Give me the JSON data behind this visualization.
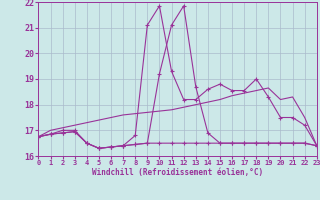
{
  "xlabel": "Windchill (Refroidissement éolien,°C)",
  "bg_color": "#cce8e8",
  "grid_color": "#aabbcc",
  "line_color": "#993399",
  "xlim": [
    0,
    23
  ],
  "ylim": [
    16,
    22
  ],
  "xticks": [
    0,
    1,
    2,
    3,
    4,
    5,
    6,
    7,
    8,
    9,
    10,
    11,
    12,
    13,
    14,
    15,
    16,
    17,
    18,
    19,
    20,
    21,
    22,
    23
  ],
  "yticks": [
    16,
    17,
    18,
    19,
    20,
    21,
    22
  ],
  "line1_x": [
    0,
    1,
    2,
    3,
    4,
    5,
    6,
    7,
    8,
    9,
    10,
    11,
    12,
    13,
    14,
    15,
    16,
    17,
    18,
    19,
    20,
    21,
    22,
    23
  ],
  "line1_y": [
    16.75,
    16.85,
    16.9,
    16.95,
    16.5,
    16.3,
    16.35,
    16.4,
    16.45,
    16.5,
    16.5,
    16.5,
    16.5,
    16.5,
    16.5,
    16.5,
    16.5,
    16.5,
    16.5,
    16.5,
    16.5,
    16.5,
    16.5,
    16.4
  ],
  "line2_x": [
    0,
    1,
    2,
    3,
    4,
    5,
    6,
    7,
    8,
    9,
    10,
    11,
    12,
    13,
    14,
    15,
    16,
    17,
    18,
    19,
    20,
    21,
    22,
    23
  ],
  "line2_y": [
    16.75,
    16.85,
    16.9,
    16.95,
    16.5,
    16.3,
    16.35,
    16.4,
    16.45,
    16.5,
    19.2,
    21.1,
    21.85,
    18.7,
    16.9,
    16.5,
    16.5,
    16.5,
    16.5,
    16.5,
    16.5,
    16.5,
    16.5,
    16.4
  ],
  "line3_x": [
    0,
    1,
    2,
    3,
    4,
    5,
    6,
    7,
    8,
    9,
    10,
    11,
    12,
    13,
    14,
    15,
    16,
    17,
    18,
    19,
    20,
    21,
    22,
    23
  ],
  "line3_y": [
    16.75,
    17.0,
    17.1,
    17.2,
    17.3,
    17.4,
    17.5,
    17.6,
    17.65,
    17.7,
    17.75,
    17.8,
    17.9,
    18.0,
    18.1,
    18.2,
    18.35,
    18.45,
    18.55,
    18.65,
    18.2,
    18.3,
    17.5,
    16.4
  ],
  "line4_x": [
    0,
    1,
    2,
    3,
    4,
    5,
    6,
    7,
    8,
    9,
    10,
    11,
    12,
    13,
    14,
    15,
    16,
    17,
    18,
    19,
    20,
    21,
    22,
    23
  ],
  "line4_y": [
    16.75,
    16.85,
    17.0,
    17.0,
    16.5,
    16.3,
    16.35,
    16.4,
    16.8,
    21.1,
    21.85,
    19.3,
    18.2,
    18.2,
    18.6,
    18.8,
    18.55,
    18.55,
    19.0,
    18.3,
    17.5,
    17.5,
    17.2,
    16.4
  ]
}
